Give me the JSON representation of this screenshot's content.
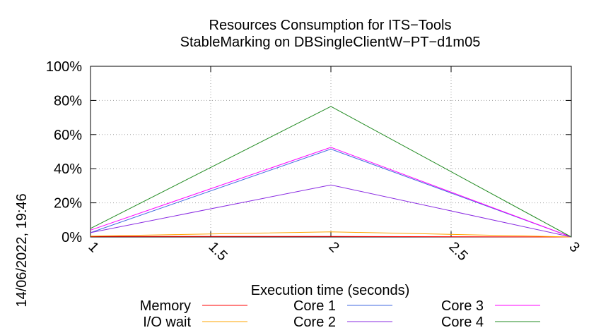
{
  "chart_data": {
    "type": "line",
    "title_line1": "Resources Consumption for ITS−Tools",
    "title_line2": "StableMarking on DBSingleClientW−PT−d1m05",
    "xlabel": "Execution time (seconds)",
    "ylabel": "",
    "timestamp": "14/06/2022, 19:46",
    "xlim": [
      1,
      3
    ],
    "ylim": [
      0,
      100
    ],
    "x_ticks": [
      {
        "value": 1,
        "label": "1"
      },
      {
        "value": 1.5,
        "label": "1.5"
      },
      {
        "value": 2,
        "label": "2"
      },
      {
        "value": 2.5,
        "label": "2.5"
      },
      {
        "value": 3,
        "label": "3"
      }
    ],
    "y_ticks": [
      {
        "value": 0,
        "label": "0%"
      },
      {
        "value": 20,
        "label": "20%"
      },
      {
        "value": 40,
        "label": "40%"
      },
      {
        "value": 60,
        "label": "60%"
      },
      {
        "value": 80,
        "label": "80%"
      },
      {
        "value": 100,
        "label": "100%"
      }
    ],
    "grid": true,
    "legend_position": "bottom",
    "x": [
      1,
      2,
      3
    ],
    "series": [
      {
        "name": "Memory",
        "color": "#ff0000",
        "values": [
          0.3,
          0.3,
          0
        ]
      },
      {
        "name": "I/O wait",
        "color": "#ffa500",
        "values": [
          0.5,
          3,
          0
        ]
      },
      {
        "name": "Core 1",
        "color": "#4169e1",
        "values": [
          2.5,
          51.5,
          0
        ]
      },
      {
        "name": "Core 2",
        "color": "#8a2be2",
        "values": [
          2.5,
          30.5,
          0
        ]
      },
      {
        "name": "Core 3",
        "color": "#ff00ff",
        "values": [
          4,
          52.5,
          0
        ]
      },
      {
        "name": "Core 4",
        "color": "#228b22",
        "values": [
          5,
          76.5,
          0
        ]
      }
    ]
  }
}
